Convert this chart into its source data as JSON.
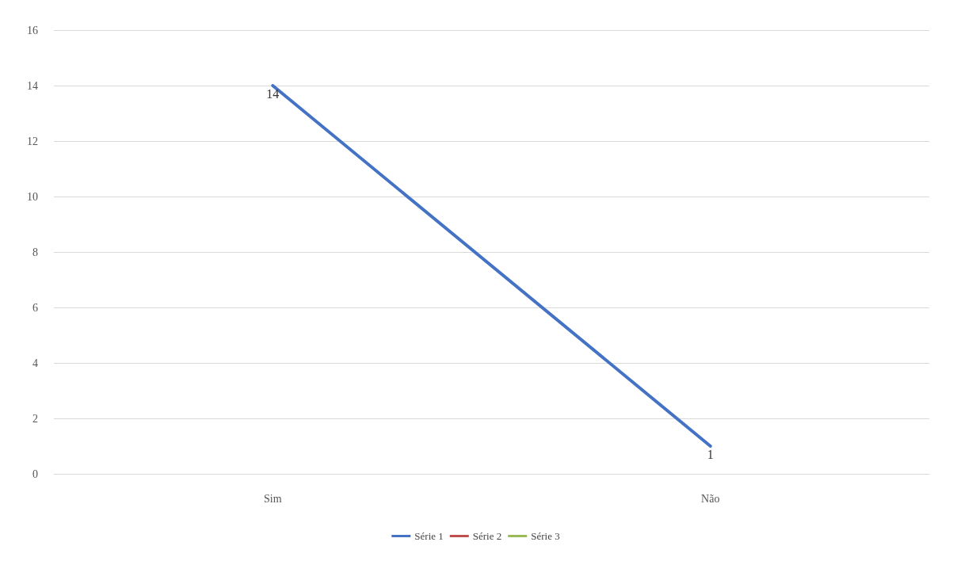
{
  "chart_data": {
    "type": "line",
    "categories": [
      "Sim",
      "Não"
    ],
    "series": [
      {
        "name": "Série 1",
        "color": "#4472c4",
        "values": [
          14,
          1
        ]
      },
      {
        "name": "Série 2",
        "color": "#c0504d",
        "values": [
          null,
          null
        ]
      },
      {
        "name": "Série 3",
        "color": "#9bbb59",
        "values": [
          null,
          null
        ]
      }
    ],
    "ylim": [
      0,
      16
    ],
    "yticks": [
      0,
      2,
      4,
      6,
      8,
      10,
      12,
      14,
      16
    ],
    "grid": "y",
    "legend": "bottom",
    "data_labels": true,
    "marker": "none",
    "line_style": "solid"
  }
}
